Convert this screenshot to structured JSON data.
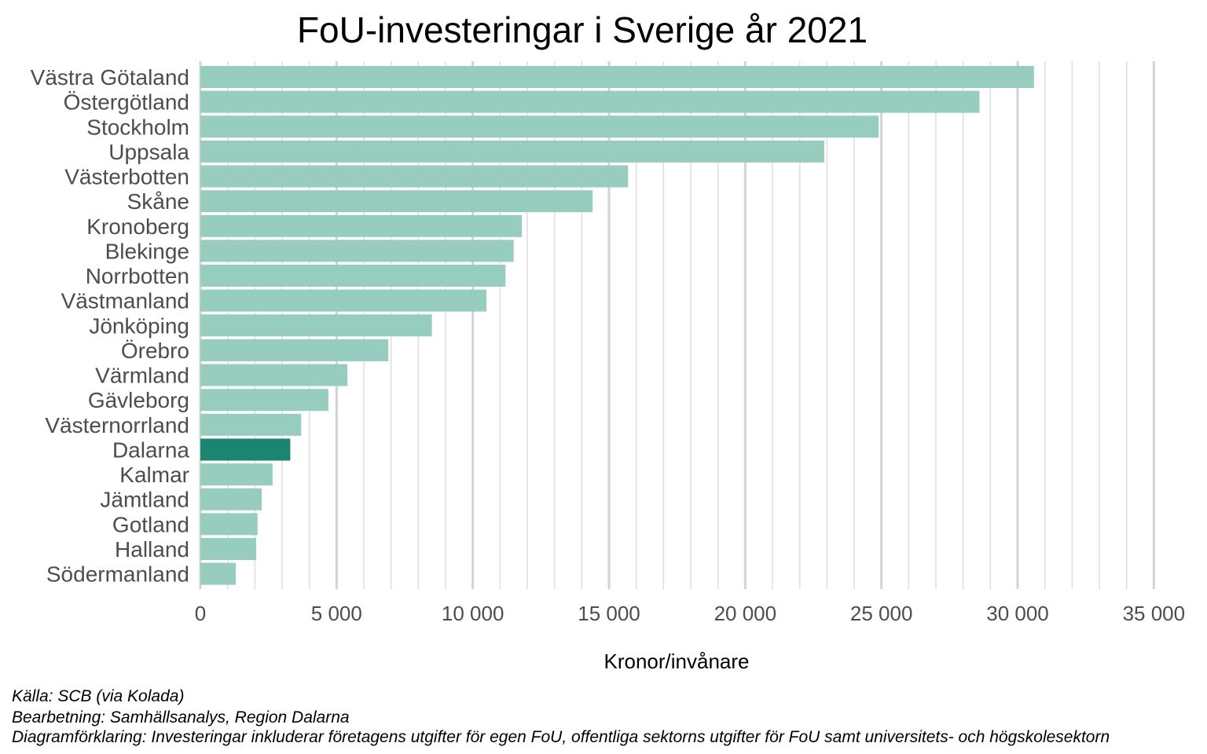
{
  "chart_data": {
    "type": "bar",
    "orientation": "horizontal",
    "title": "FoU-investeringar i Sverige år 2021",
    "xlabel": "Kronor/invånare",
    "ylabel": "",
    "xlim": [
      0,
      35000
    ],
    "x_ticks": [
      0,
      5000,
      10000,
      15000,
      20000,
      25000,
      30000,
      35000
    ],
    "x_tick_labels": [
      "0",
      "5 000",
      "10 000",
      "15 000",
      "20 000",
      "25 000",
      "30 000",
      "35 000"
    ],
    "grid": "vertical",
    "legend": "none",
    "categories": [
      "Västra Götaland",
      "Östergötland",
      "Stockholm",
      "Uppsala",
      "Västerbotten",
      "Skåne",
      "Kronoberg",
      "Blekinge",
      "Norrbotten",
      "Västmanland",
      "Jönköping",
      "Örebro",
      "Värmland",
      "Gävleborg",
      "Västernorrland",
      "Dalarna",
      "Kalmar",
      "Jämtland",
      "Gotland",
      "Halland",
      "Södermanland"
    ],
    "values": [
      30600,
      28600,
      24900,
      22900,
      15700,
      14400,
      11800,
      11500,
      11200,
      10500,
      8500,
      6900,
      5400,
      4700,
      3700,
      3300,
      2650,
      2250,
      2100,
      2050,
      1300
    ],
    "highlight": "Dalarna",
    "colors": {
      "bar": "#96cdbf",
      "highlight": "#1a8571",
      "grid_major": "#d3d3d3",
      "grid_minor": "#dedede"
    }
  },
  "captions": [
    "Källa: SCB (via Kolada)",
    "Bearbetning: Samhällsanalys, Region Dalarna",
    "Diagramförklaring: Investeringar inkluderar företagens utgifter för egen FoU, offentliga sektorns utgifter för FoU samt universitets- och högskolesektorn"
  ]
}
